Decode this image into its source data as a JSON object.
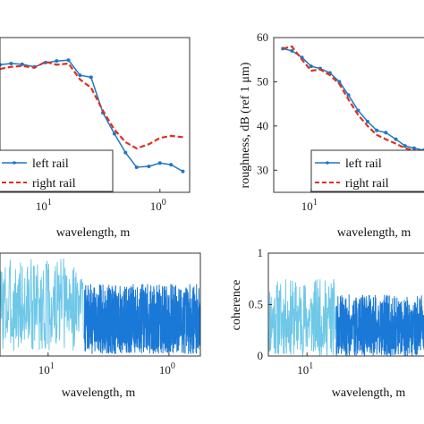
{
  "chart_data": [
    {
      "id": "tl",
      "type": "line",
      "xscale": "log",
      "xlabel": "wavelength, m",
      "ylabel": "",
      "xlim": [
        25,
        0.55
      ],
      "ylim": [
        25,
        62
      ],
      "xticks": [
        {
          "v": 10,
          "label": "10^1"
        },
        {
          "v": 1,
          "label": "10^0"
        }
      ],
      "yticks": [],
      "legend": {
        "position": "bottom-left",
        "entries": [
          "left rail",
          "right rail"
        ]
      },
      "series": [
        {
          "name": "left rail",
          "color": "#1f77c4",
          "style": "solid-marker",
          "x": [
            25,
            20,
            16,
            12.5,
            10,
            8,
            6.3,
            5,
            4,
            3.15,
            2.5,
            2,
            1.6,
            1.25,
            1,
            0.8,
            0.63
          ],
          "y": [
            55.5,
            55.8,
            55.6,
            55.0,
            56.0,
            56.4,
            56.6,
            53.0,
            52.5,
            44.0,
            39.0,
            34.5,
            31.0,
            31.2,
            32.0,
            31.6,
            30.0
          ]
        },
        {
          "name": "right rail",
          "color": "#e03020",
          "style": "dashed",
          "x": [
            25,
            20,
            16,
            12.5,
            10,
            8,
            6.3,
            5,
            4,
            3.15,
            2.5,
            2,
            1.6,
            1.25,
            1,
            0.8,
            0.63
          ],
          "y": [
            54.5,
            55.0,
            55.2,
            54.8,
            56.2,
            55.5,
            55.8,
            52.0,
            50.0,
            44.5,
            40.0,
            37.0,
            35.5,
            36.5,
            38.0,
            38.5,
            38.2
          ]
        }
      ]
    },
    {
      "id": "tr",
      "type": "line",
      "xscale": "log",
      "xlabel": "wavelength, m",
      "ylabel": "roughness, dB (ref 1 μm)",
      "xlim": [
        25,
        0.55
      ],
      "ylim": [
        25,
        60
      ],
      "xticks": [
        {
          "v": 10,
          "label": "10^1"
        }
      ],
      "yticks": [
        {
          "v": 30,
          "label": "30"
        },
        {
          "v": 40,
          "label": "40"
        },
        {
          "v": 50,
          "label": "50"
        },
        {
          "v": 60,
          "label": "60"
        }
      ],
      "legend": {
        "position": "bottom-right",
        "entries": [
          "left rail",
          "right rail"
        ]
      },
      "series": [
        {
          "name": "left rail",
          "color": "#1f77c4",
          "style": "solid-marker",
          "x": [
            20,
            16,
            12.5,
            10,
            8,
            6.3,
            5,
            4,
            3.15,
            2.5,
            2,
            1.6,
            1.25,
            1,
            0.8,
            0.63
          ],
          "y": [
            57.5,
            57.0,
            55.5,
            53.5,
            53.0,
            52.0,
            50.0,
            47.0,
            43.5,
            41.0,
            39.0,
            38.5,
            37.0,
            35.5,
            35.0,
            34.5
          ]
        },
        {
          "name": "right rail",
          "color": "#e03020",
          "style": "dashed",
          "x": [
            20,
            16,
            12.5,
            10,
            8,
            6.3,
            5,
            4,
            3.15,
            2.5,
            2,
            1.6,
            1.25,
            1,
            0.8,
            0.63
          ],
          "y": [
            57.5,
            58.0,
            55.0,
            52.5,
            52.8,
            51.5,
            49.5,
            46.0,
            42.5,
            40.0,
            38.0,
            37.0,
            36.0,
            35.0,
            34.5,
            34.0
          ]
        }
      ]
    },
    {
      "id": "bl",
      "type": "line",
      "xscale": "log",
      "xlabel": "wavelength, m",
      "ylabel": "",
      "xlim": [
        25,
        0.55
      ],
      "ylim": [
        0,
        1
      ],
      "xticks": [
        {
          "v": 10,
          "label": "10^1"
        },
        {
          "v": 1,
          "label": "10^0"
        }
      ],
      "yticks": [],
      "series": [
        {
          "name": "",
          "color": "#6fc8e8",
          "style": "noise",
          "xmin": 5,
          "xmax": 25,
          "lo": 0.05,
          "hi": 0.95,
          "seed": 3,
          "n": 240
        },
        {
          "name": "",
          "color": "#1a78d6",
          "style": "noise",
          "xmin": 0.55,
          "xmax": 5,
          "lo": 0.02,
          "hi": 0.7,
          "seed": 7,
          "n": 900
        }
      ]
    },
    {
      "id": "br",
      "type": "line",
      "xscale": "log",
      "xlabel": "wavelength, m",
      "ylabel": "coherence",
      "xlim": [
        25,
        0.55
      ],
      "ylim": [
        0,
        1
      ],
      "xticks": [
        {
          "v": 10,
          "label": "10^1"
        }
      ],
      "yticks": [
        {
          "v": 0,
          "label": "0"
        },
        {
          "v": 0.5,
          "label": "0.5"
        },
        {
          "v": 1,
          "label": "1"
        }
      ],
      "series": [
        {
          "name": "",
          "color": "#6fc8e8",
          "style": "noise",
          "xmin": 5,
          "xmax": 25,
          "lo": 0.0,
          "hi": 0.75,
          "seed": 11,
          "n": 240
        },
        {
          "name": "",
          "color": "#1a78d6",
          "style": "noise",
          "xmin": 0.55,
          "xmax": 5,
          "lo": 0.0,
          "hi": 0.6,
          "seed": 19,
          "n": 700
        }
      ]
    }
  ]
}
